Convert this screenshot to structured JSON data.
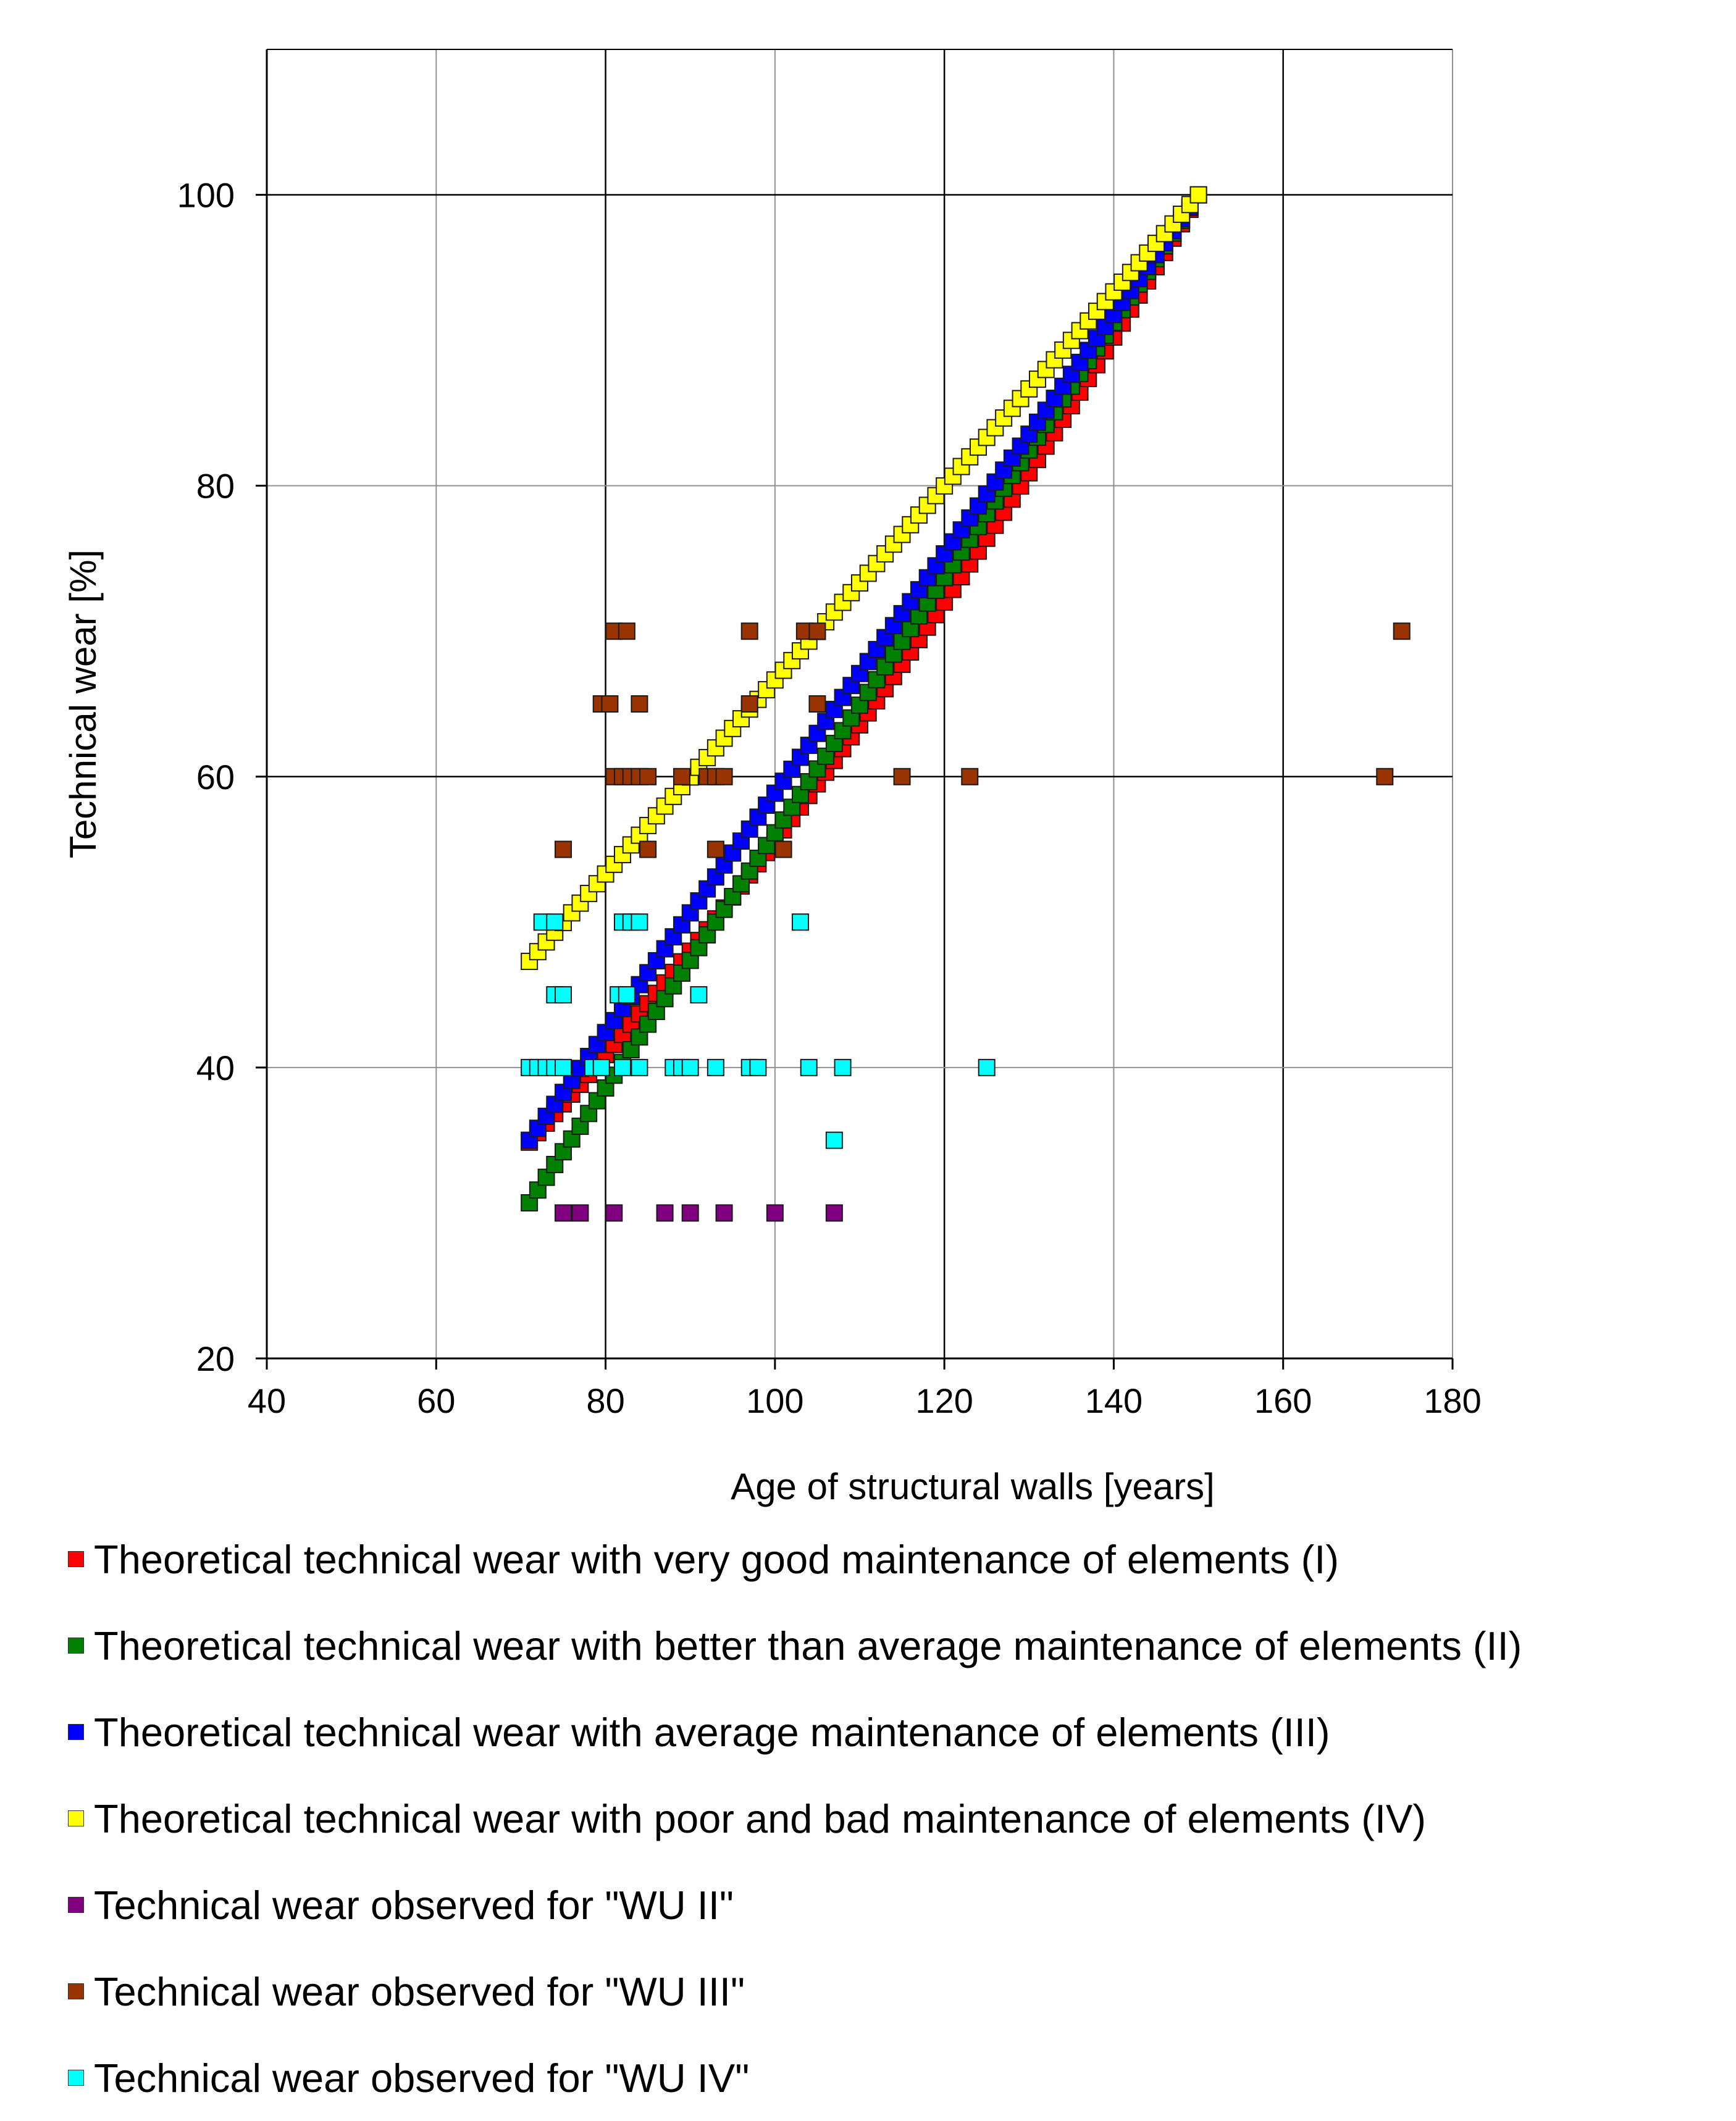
{
  "chart_data": {
    "type": "scatter",
    "title": "",
    "xlabel": "Age of structural walls [years]",
    "ylabel": "Technical wear [%]",
    "xlim": [
      40,
      180
    ],
    "ylim": [
      20,
      110
    ],
    "xticks": [
      40,
      60,
      80,
      100,
      120,
      140,
      160,
      180
    ],
    "yticks": [
      20,
      40,
      60,
      80,
      100
    ],
    "grid": true,
    "legend_position": "bottom",
    "series": [
      {
        "name": "Theoretical technical wear with very good maintenance of elements (I)",
        "color": "#ff0000",
        "kind": "curve",
        "x_range": [
          71,
          150
        ],
        "formula": "100*(x^2 + x*150)/(2*150^2)",
        "step": 1
      },
      {
        "name": "Theoretical technical wear with better than average maintenance of elements (II)",
        "color": "#008000",
        "kind": "curve",
        "x_range": [
          71,
          150
        ],
        "formula": "linear 30.7 -> 100",
        "endpoints": [
          [
            71,
            30.7
          ],
          [
            150,
            100
          ]
        ],
        "step": 1
      },
      {
        "name": "Theoretical technical wear with average maintenance of elements (III)",
        "color": "#0000ff",
        "kind": "curve",
        "x_range": [
          71,
          150
        ],
        "formula": "linear 35 -> 100",
        "endpoints": [
          [
            71,
            35.0
          ],
          [
            150,
            100
          ]
        ],
        "step": 1
      },
      {
        "name": "Theoretical technical wear with poor and bad maintenance of elements (IV)",
        "color": "#ffff00",
        "kind": "curve",
        "x_range": [
          71,
          150
        ],
        "formula": "linear 47.3 -> 100",
        "endpoints": [
          [
            71,
            47.3
          ],
          [
            150,
            100
          ]
        ],
        "step": 1
      },
      {
        "name": "Technical wear observed for \"WU II\"",
        "color": "#800080",
        "kind": "points",
        "points": [
          [
            75,
            30
          ],
          [
            77,
            30
          ],
          [
            81,
            30
          ],
          [
            87,
            30
          ],
          [
            90,
            30
          ],
          [
            94,
            30
          ],
          [
            100,
            30
          ],
          [
            107,
            30
          ]
        ]
      },
      {
        "name": "Technical wear observed for \"WU III\"",
        "color": "#993300",
        "kind": "points",
        "points": [
          [
            81,
            70
          ],
          [
            82.5,
            70
          ],
          [
            97,
            70
          ],
          [
            103.5,
            70
          ],
          [
            105,
            70
          ],
          [
            174,
            70
          ],
          [
            79.5,
            65
          ],
          [
            80.5,
            65
          ],
          [
            84,
            65
          ],
          [
            97,
            65
          ],
          [
            105,
            65
          ],
          [
            81,
            60
          ],
          [
            82,
            60
          ],
          [
            83,
            60
          ],
          [
            84,
            60
          ],
          [
            85,
            60
          ],
          [
            89,
            60
          ],
          [
            92,
            60
          ],
          [
            93,
            60
          ],
          [
            94,
            60
          ],
          [
            115,
            60
          ],
          [
            123,
            60
          ],
          [
            172,
            60
          ],
          [
            75,
            55
          ],
          [
            85,
            55
          ],
          [
            93,
            55
          ],
          [
            101,
            55
          ]
        ]
      },
      {
        "name": "Technical wear observed for \"WU IV\"",
        "color": "#00ffff",
        "kind": "points",
        "points": [
          [
            72.5,
            50
          ],
          [
            74,
            50
          ],
          [
            82,
            50
          ],
          [
            83,
            50
          ],
          [
            84,
            50
          ],
          [
            103,
            50
          ],
          [
            74,
            45
          ],
          [
            75,
            45
          ],
          [
            81.5,
            45
          ],
          [
            82.5,
            45
          ],
          [
            91,
            45
          ],
          [
            71,
            40
          ],
          [
            72,
            40
          ],
          [
            73,
            40
          ],
          [
            74,
            40
          ],
          [
            75,
            40
          ],
          [
            78.5,
            40
          ],
          [
            79.5,
            40
          ],
          [
            82,
            40
          ],
          [
            84,
            40
          ],
          [
            88,
            40
          ],
          [
            89,
            40
          ],
          [
            90,
            40
          ],
          [
            93,
            40
          ],
          [
            97,
            40
          ],
          [
            98,
            40
          ],
          [
            104,
            40
          ],
          [
            108,
            40
          ],
          [
            125,
            40
          ],
          [
            107,
            35
          ]
        ]
      }
    ]
  }
}
